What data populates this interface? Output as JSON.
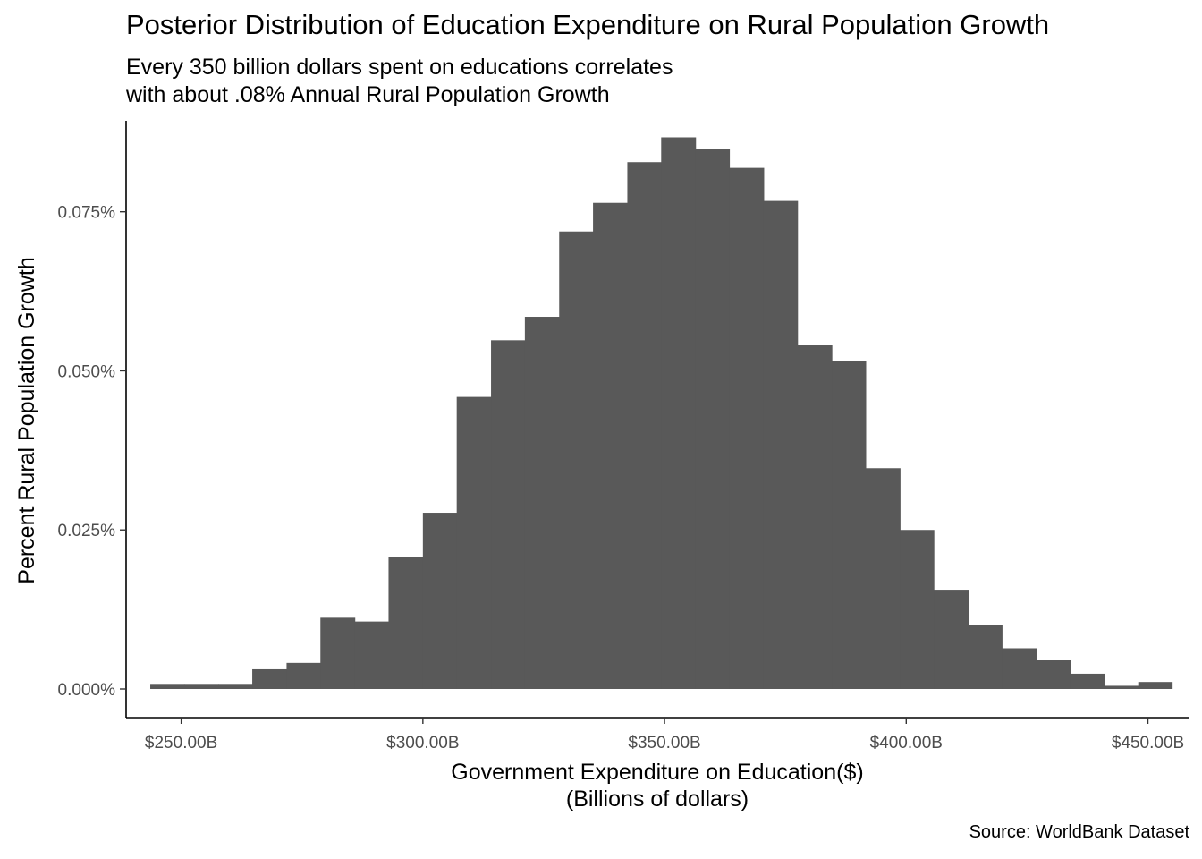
{
  "chart_data": {
    "type": "bar",
    "subtype": "histogram",
    "title": "Posterior Distribution of Education Expenditure on Rural Population Growth",
    "subtitle_lines": [
      "Every 350 billion dollars spent on educations correlates",
      "with about .08% Annual Rural Population Growth"
    ],
    "caption": "Source: WorldBank Dataset",
    "xlabel_lines": [
      "Government Expenditure on Education($)",
      "(Billions of dollars)"
    ],
    "ylabel": "Percent Rural Population Growth",
    "xlim": [
      238.6,
      458.6
    ],
    "ylim": [
      -0.0045,
      0.0893
    ],
    "x_ticks": [
      250,
      300,
      350,
      400,
      450
    ],
    "x_tick_labels": [
      "$250.00B",
      "$300.00B",
      "$350.00B",
      "$400.00B",
      "$450.00B"
    ],
    "y_ticks": [
      0,
      0.025,
      0.05,
      0.075
    ],
    "y_tick_labels": [
      "0.000%",
      "0.025%",
      "0.050%",
      "0.075%"
    ],
    "bar_color": "#595959",
    "bin_width": 7.05,
    "bins": [
      {
        "x0": 243.6,
        "x1": 250.6,
        "value": 0.0008
      },
      {
        "x0": 250.6,
        "x1": 257.7,
        "value": 0.0008
      },
      {
        "x0": 257.7,
        "x1": 264.7,
        "value": 0.0008
      },
      {
        "x0": 264.7,
        "x1": 271.8,
        "value": 0.0031
      },
      {
        "x0": 271.8,
        "x1": 278.8,
        "value": 0.0041
      },
      {
        "x0": 278.8,
        "x1": 285.9,
        "value": 0.0112
      },
      {
        "x0": 285.9,
        "x1": 292.9,
        "value": 0.0106
      },
      {
        "x0": 292.9,
        "x1": 300.0,
        "value": 0.0208
      },
      {
        "x0": 300.0,
        "x1": 307.0,
        "value": 0.0277
      },
      {
        "x0": 307.0,
        "x1": 314.1,
        "value": 0.0459
      },
      {
        "x0": 314.1,
        "x1": 321.1,
        "value": 0.0548
      },
      {
        "x0": 321.1,
        "x1": 328.2,
        "value": 0.0585
      },
      {
        "x0": 328.2,
        "x1": 335.2,
        "value": 0.0719
      },
      {
        "x0": 335.2,
        "x1": 342.3,
        "value": 0.0764
      },
      {
        "x0": 342.3,
        "x1": 349.3,
        "value": 0.0828
      },
      {
        "x0": 349.3,
        "x1": 356.4,
        "value": 0.0867
      },
      {
        "x0": 356.4,
        "x1": 363.4,
        "value": 0.0848
      },
      {
        "x0": 363.4,
        "x1": 370.5,
        "value": 0.0819
      },
      {
        "x0": 370.5,
        "x1": 377.5,
        "value": 0.0767
      },
      {
        "x0": 377.5,
        "x1": 384.6,
        "value": 0.054
      },
      {
        "x0": 384.6,
        "x1": 391.6,
        "value": 0.0516
      },
      {
        "x0": 391.6,
        "x1": 398.7,
        "value": 0.0347
      },
      {
        "x0": 398.7,
        "x1": 405.7,
        "value": 0.025
      },
      {
        "x0": 405.7,
        "x1": 412.8,
        "value": 0.0156
      },
      {
        "x0": 412.8,
        "x1": 419.8,
        "value": 0.0101
      },
      {
        "x0": 419.8,
        "x1": 426.9,
        "value": 0.0064
      },
      {
        "x0": 426.9,
        "x1": 433.9,
        "value": 0.0045
      },
      {
        "x0": 433.9,
        "x1": 441.0,
        "value": 0.0024
      },
      {
        "x0": 441.0,
        "x1": 448.0,
        "value": 0.0005
      },
      {
        "x0": 448.0,
        "x1": 455.0,
        "value": 0.0011
      }
    ]
  }
}
